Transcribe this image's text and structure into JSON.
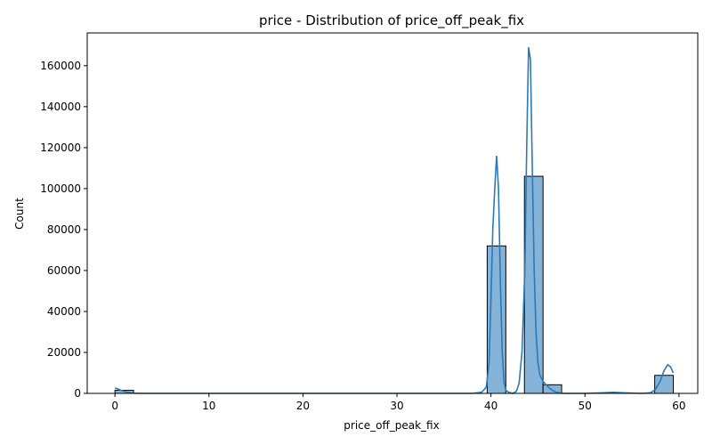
{
  "chart_data": {
    "type": "bar",
    "title": "price - Distribution of price_off_peak_fix",
    "xlabel": "price_off_peak_fix",
    "ylabel": "Count",
    "xlim": [
      -2.95,
      62.0
    ],
    "ylim": [
      0,
      176000
    ],
    "x_ticks": [
      0,
      10,
      20,
      30,
      40,
      50,
      60
    ],
    "y_ticks": [
      0,
      20000,
      40000,
      60000,
      80000,
      100000,
      120000,
      140000,
      160000
    ],
    "bins": [
      {
        "x0": 0.0,
        "x1": 1.98,
        "count": 1500
      },
      {
        "x0": 39.6,
        "x1": 41.58,
        "count": 72000
      },
      {
        "x0": 41.58,
        "x1": 43.56,
        "count": 0
      },
      {
        "x0": 43.56,
        "x1": 45.54,
        "count": 106000
      },
      {
        "x0": 45.54,
        "x1": 47.52,
        "count": 4200
      },
      {
        "x0": 57.42,
        "x1": 59.4,
        "count": 8800
      }
    ],
    "kde": {
      "x": [
        0.0,
        0.5,
        1.0,
        1.5,
        2.0,
        3.0,
        5.0,
        10.0,
        20.0,
        30.0,
        38.0,
        39.0,
        39.5,
        39.8,
        40.0,
        40.2,
        40.4,
        40.6,
        40.8,
        41.0,
        41.2,
        41.4,
        41.6,
        41.9,
        42.3,
        42.7,
        43.0,
        43.3,
        43.6,
        43.8,
        44.0,
        44.2,
        44.4,
        44.6,
        44.8,
        45.0,
        45.2,
        45.4,
        45.6,
        46.0,
        46.5,
        47.0,
        47.5,
        48.0,
        50.0,
        52.0,
        53.0,
        54.0,
        56.0,
        57.0,
        57.5,
        58.0,
        58.4,
        58.8,
        59.1,
        59.4
      ],
      "y": [
        2700,
        1800,
        900,
        400,
        100,
        0,
        0,
        0,
        0,
        0,
        0,
        500,
        3000,
        15000,
        45000,
        80000,
        100000,
        116000,
        100000,
        55000,
        20000,
        5000,
        1500,
        500,
        0,
        1000,
        5000,
        20000,
        60000,
        120000,
        169000,
        163000,
        110000,
        60000,
        30000,
        15000,
        9000,
        7000,
        5500,
        3500,
        1500,
        500,
        100,
        0,
        0,
        300,
        500,
        300,
        0,
        300,
        2000,
        6000,
        11000,
        14000,
        13000,
        10000
      ]
    },
    "grid": false,
    "bar_color": "#86b4d8",
    "line_color": "#2a7ab8"
  }
}
